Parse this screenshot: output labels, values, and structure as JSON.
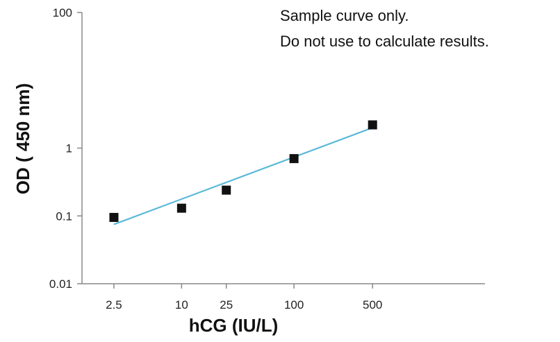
{
  "chart_data": {
    "type": "scatter",
    "xlabel": "hCG (IU/L)",
    "ylabel": "OD ( 450 nm)",
    "x_scale": "log",
    "y_scale": "log",
    "xlim": [
      1.3,
      5000
    ],
    "ylim": [
      0.01,
      100
    ],
    "x_ticks": [
      {
        "value": 2.5,
        "label": "2.5"
      },
      {
        "value": 10,
        "label": "10"
      },
      {
        "value": 25,
        "label": "25"
      },
      {
        "value": 100,
        "label": "100"
      },
      {
        "value": 500,
        "label": "500"
      }
    ],
    "y_ticks": [
      {
        "value": 0.01,
        "label": "0.01"
      },
      {
        "value": 0.1,
        "label": "0.1"
      },
      {
        "value": 1,
        "label": "1"
      },
      {
        "value": 100,
        "label": "100"
      }
    ],
    "points": [
      {
        "x": 2.5,
        "y": 0.095
      },
      {
        "x": 10,
        "y": 0.13
      },
      {
        "x": 25,
        "y": 0.24
      },
      {
        "x": 100,
        "y": 0.7
      },
      {
        "x": 500,
        "y": 2.2
      }
    ],
    "fit_line": [
      {
        "x": 2.5,
        "y": 0.075
      },
      {
        "x": 500,
        "y": 2.0
      }
    ],
    "annotation": [
      "Sample curve only.",
      "Do not use to calculate results."
    ],
    "grid": false,
    "colors": {
      "points": "#111111",
      "fit_line": "#5bb8d8",
      "axis": "#888888"
    }
  }
}
